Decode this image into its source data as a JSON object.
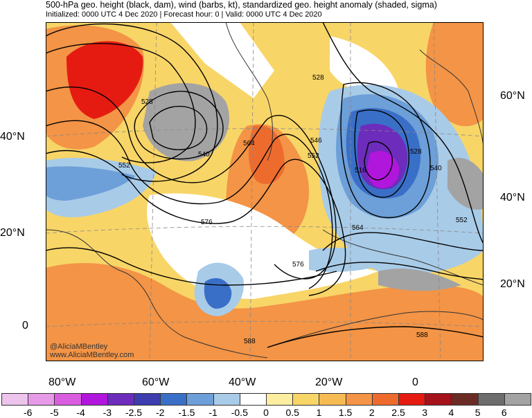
{
  "header": {
    "title": "500-hPa geo. height (black, dam), wind (barbs, kt), standardized geo. height anomaly (shaded, sigma)",
    "subtitle": "Initialized: 0000 UTC 4 Dec 2020 | Forecast hour: 0 | Valid: 0000 UTC 4 Dec 2020"
  },
  "map": {
    "credit_handle": "@AliciaMBentley",
    "credit_url": "www.AliciaMBentley.com",
    "left_lat_labels": [
      "40°N",
      "20°N",
      "0"
    ],
    "right_lat_labels": [
      "60°N",
      "40°N",
      "20°N"
    ],
    "lon_labels": [
      "80°W",
      "60°W",
      "40°W",
      "20°W",
      "0"
    ],
    "contour_labels": [
      "528",
      "528",
      "552",
      "540",
      "564",
      "546",
      "552",
      "576",
      "576",
      "516",
      "528",
      "540",
      "552",
      "564",
      "588",
      "588"
    ]
  },
  "legend": {
    "values": [
      "-6",
      "-5",
      "-4",
      "-3",
      "-2.5",
      "-2",
      "-1.5",
      "-1",
      "-0.5",
      "0",
      "0.5",
      "1",
      "1.5",
      "2",
      "2.5",
      "3",
      "4",
      "5",
      "6"
    ],
    "colors": [
      "#ecc4ec",
      "#e79ae8",
      "#da5de0",
      "#b116dc",
      "#6d2cbb",
      "#3d3db0",
      "#3a6fc7",
      "#6d9fd8",
      "#a8cbe8",
      "#ffffff",
      "#fbeea1",
      "#f8d567",
      "#f6bb53",
      "#f39446",
      "#ee6b2e",
      "#e51b12",
      "#a4121b",
      "#6b2b25",
      "#6d6d6d",
      "#a3a3a3"
    ]
  }
}
